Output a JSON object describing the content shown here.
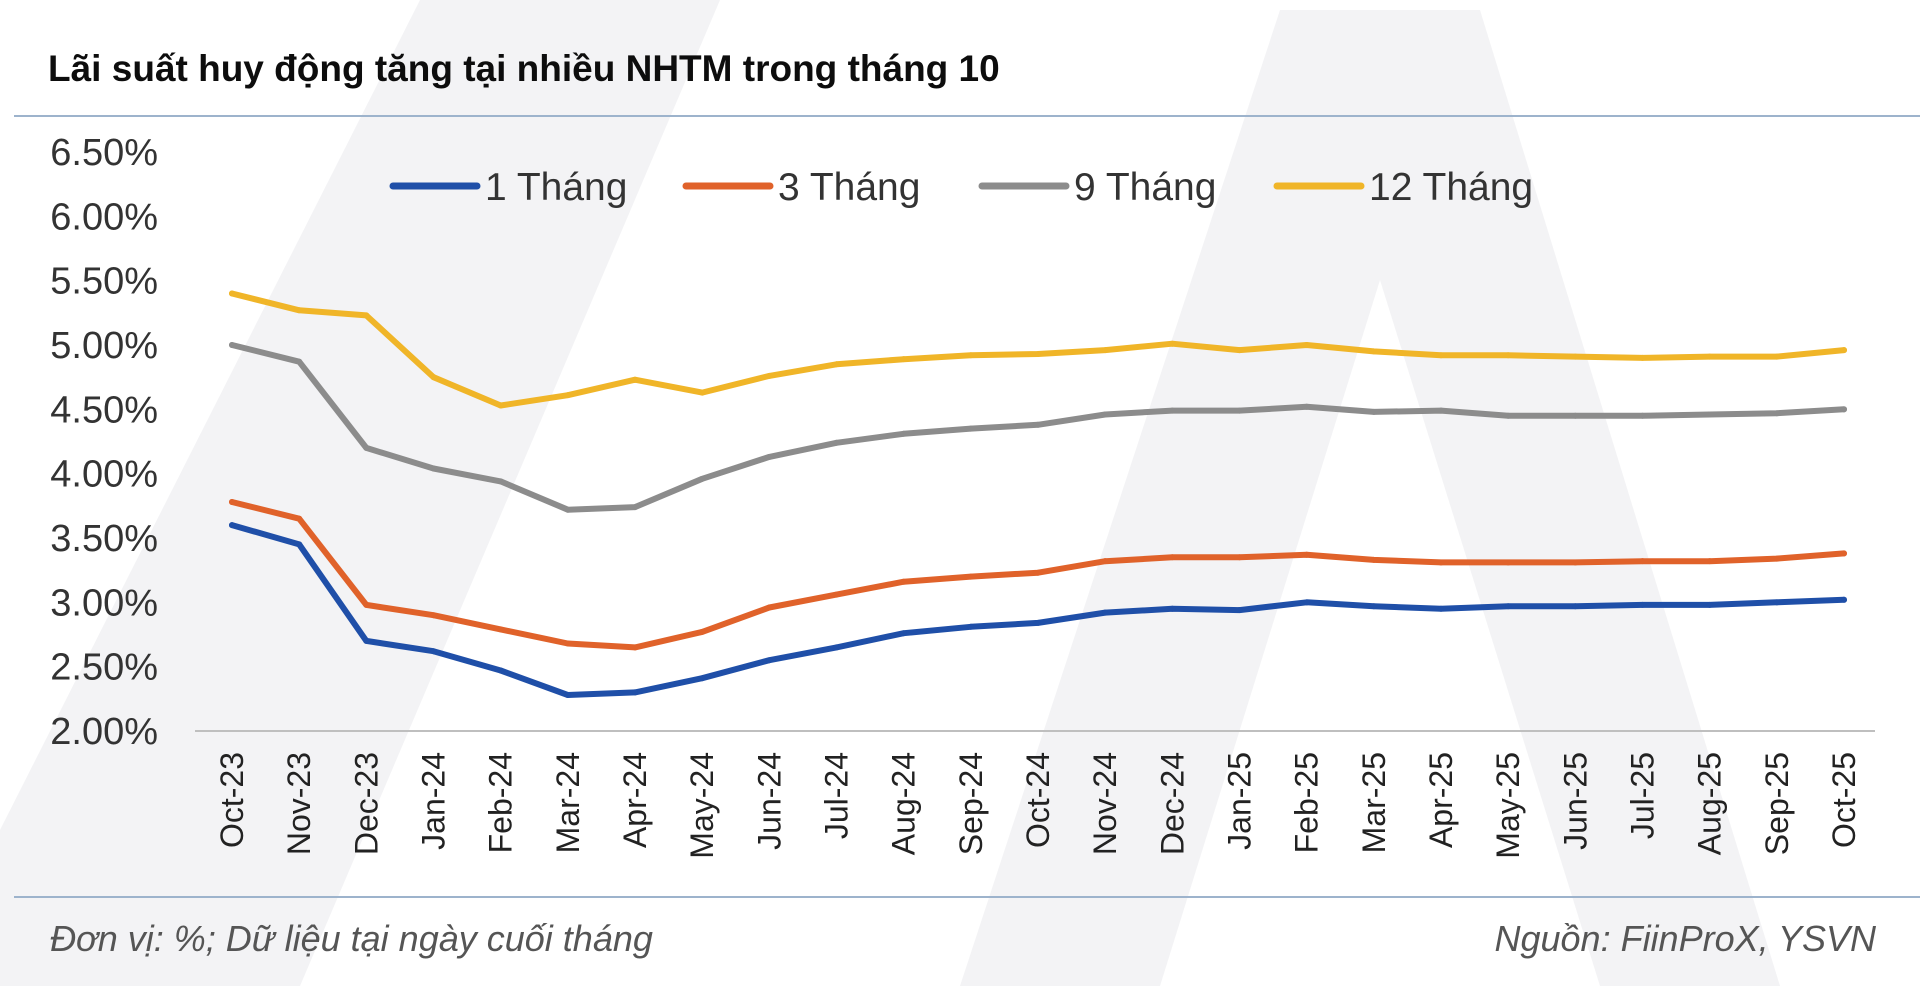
{
  "title": "Lãi suất huy động tăng tại nhiều NHTM trong tháng 10",
  "footnote_left": "Đơn vị: %; Dữ liệu tại ngày cuối tháng",
  "footnote_right": "Nguồn: FiinProX, YSVN",
  "chart_data": {
    "type": "line",
    "title": "Lãi suất huy động tăng tại nhiều NHTM trong tháng 10",
    "xlabel": "",
    "ylabel": "",
    "ylim": [
      2.0,
      6.5
    ],
    "ytick_step": 0.5,
    "ytick_labels": [
      "2.00%",
      "2.50%",
      "3.00%",
      "3.50%",
      "4.00%",
      "4.50%",
      "5.00%",
      "5.50%",
      "6.00%",
      "6.50%"
    ],
    "grid": false,
    "legend_position": "top",
    "categories": [
      "Oct-23",
      "Nov-23",
      "Dec-23",
      "Jan-24",
      "Feb-24",
      "Mar-24",
      "Apr-24",
      "May-24",
      "Jun-24",
      "Jul-24",
      "Aug-24",
      "Sep-24",
      "Oct-24",
      "Nov-24",
      "Dec-24",
      "Jan-25",
      "Feb-25",
      "Mar-25",
      "Apr-25",
      "May-25",
      "Jun-25",
      "Jul-25",
      "Aug-25",
      "Sep-25",
      "Oct-25"
    ],
    "series": [
      {
        "name": "1 Tháng",
        "color": "#1f4fa8",
        "values": [
          3.6,
          3.45,
          2.7,
          2.62,
          2.47,
          2.28,
          2.3,
          2.41,
          2.55,
          2.65,
          2.76,
          2.81,
          2.84,
          2.92,
          2.95,
          2.94,
          3.0,
          2.97,
          2.95,
          2.97,
          2.97,
          2.98,
          2.98,
          3.0,
          3.02
        ]
      },
      {
        "name": "3 Tháng",
        "color": "#e0622a",
        "values": [
          3.78,
          3.65,
          2.98,
          2.9,
          2.79,
          2.68,
          2.65,
          2.77,
          2.96,
          3.06,
          3.16,
          3.2,
          3.23,
          3.32,
          3.35,
          3.35,
          3.37,
          3.33,
          3.31,
          3.31,
          3.31,
          3.32,
          3.32,
          3.34,
          3.38
        ]
      },
      {
        "name": "9 Tháng",
        "color": "#8c8c8c",
        "values": [
          5.0,
          4.87,
          4.2,
          4.04,
          3.94,
          3.72,
          3.74,
          3.96,
          4.13,
          4.24,
          4.31,
          4.35,
          4.38,
          4.46,
          4.49,
          4.49,
          4.52,
          4.48,
          4.49,
          4.45,
          4.45,
          4.45,
          4.46,
          4.47,
          4.5
        ]
      },
      {
        "name": "12 Tháng",
        "color": "#f0b528",
        "values": [
          5.4,
          5.27,
          5.23,
          4.75,
          4.53,
          4.61,
          4.73,
          4.63,
          4.76,
          4.85,
          4.89,
          4.92,
          4.93,
          4.96,
          5.01,
          4.96,
          5.0,
          4.95,
          4.92,
          4.92,
          4.91,
          4.9,
          4.91,
          4.91,
          4.96
        ]
      }
    ]
  }
}
